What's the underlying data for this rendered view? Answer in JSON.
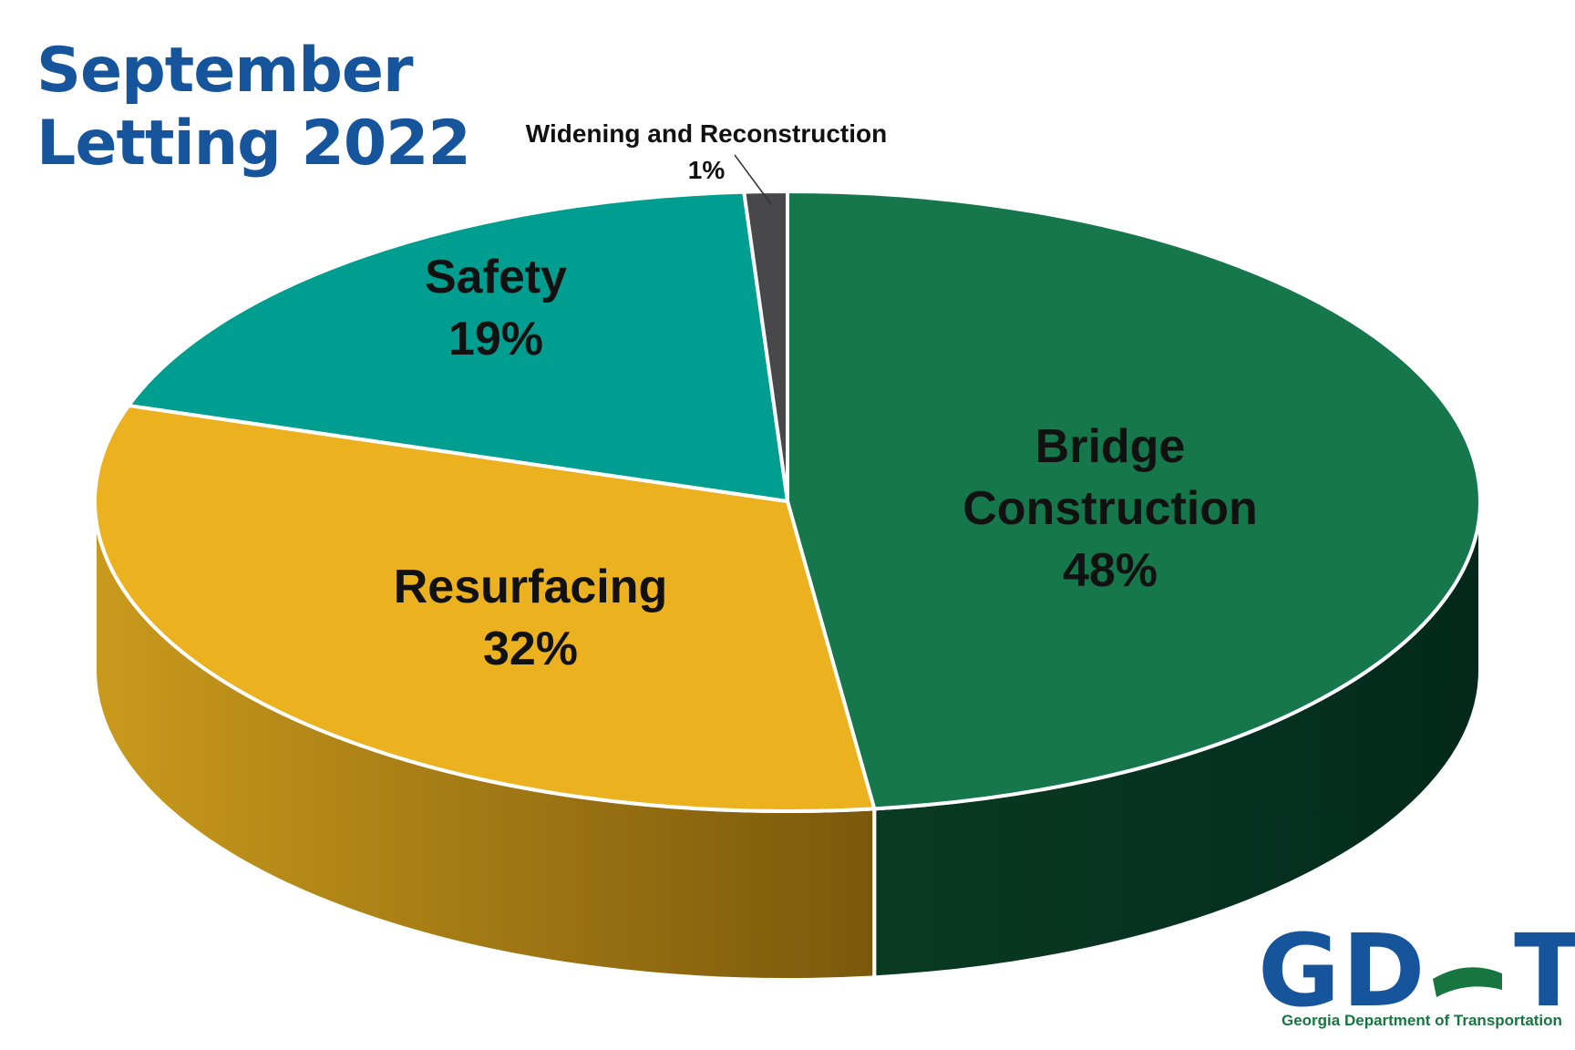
{
  "chart_data": {
    "type": "pie",
    "style": "3d",
    "title": [
      "September",
      "Letting 2022"
    ],
    "slices": [
      {
        "label": [
          "Bridge",
          "Construction"
        ],
        "value": 48,
        "display": "48%",
        "color": "#16764c",
        "side_color": "#063a22"
      },
      {
        "label": [
          "Resurfacing"
        ],
        "value": 32,
        "display": "32%",
        "color": "#ebb11e",
        "side_color": "#a87e12"
      },
      {
        "label": [
          "Safety"
        ],
        "value": 19,
        "display": "19%",
        "color": "#009e90",
        "side_color": "#00645b"
      },
      {
        "label": [
          "Widening and Reconstruction"
        ],
        "value": 1,
        "display": "1%",
        "color": "#48484a",
        "side_color": "#2a2a2c"
      }
    ],
    "legend": "none"
  },
  "logo": {
    "text": "GDOT",
    "subtitle": "Georgia Department of Transportation"
  },
  "colors": {
    "title": "#16549c",
    "logo_blue": "#16549c",
    "logo_green": "#17763f"
  }
}
